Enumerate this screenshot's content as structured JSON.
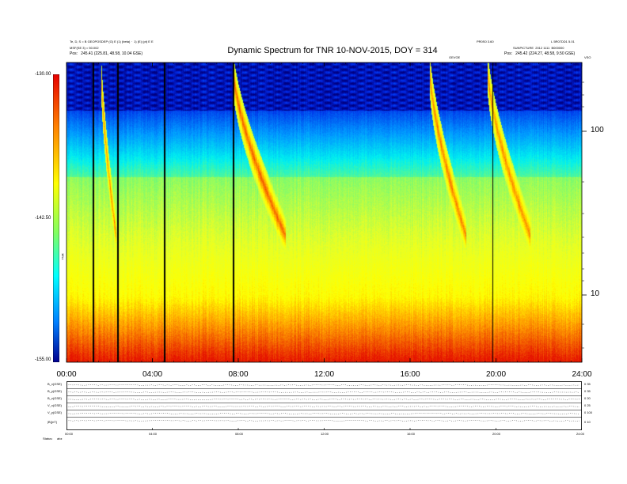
{
  "header": {
    "title": "Dynamic Spectrum for TNR 10-NOV-2015, DOY = 314",
    "left_line1": "Te, D, S = Β GEOPOSDEP (G) E (1) (beta) ·  1) (E) (pt) E E",
    "left_line2": "MSF(SE 3) = 50.002",
    "left_line3": "Pos:   245.41 (225.81, 48.58, 10.04 GSE)",
    "right_top_a": "PR0S0 3.60",
    "right_top_b": "L 5R07DD1 5.01",
    "right_line2": "SUNPICTURE  2012 1111  B000000",
    "right_line3": "Pos:   245.42 (224.27, 48.58, 9.50 GSE)",
    "marker_left": "GEVOE",
    "marker_right": "VSO"
  },
  "colorbar": {
    "top_label": "-130.00",
    "mid_label": "-142.50",
    "bottom_label": "-155.00",
    "axis_label": "TNR"
  },
  "chart_data": {
    "type": "heatmap",
    "title": "Dynamic Spectrum for TNR 10-NOV-2015, DOY = 314",
    "x_ticks": [
      "00:00",
      "04:00",
      "08:00",
      "12:00",
      "16:00",
      "20:00",
      "24:00"
    ],
    "x_range_hours": [
      0,
      24
    ],
    "y_scale": "log",
    "y_ticks_right": [
      "100",
      "10"
    ],
    "colorbar_range": [
      -155.0,
      -130.0
    ],
    "colorbar_ticks": [
      "-130.00",
      "-142.50",
      "-155.00"
    ],
    "dropouts_hours": [
      1.2,
      2.35,
      4.55,
      7.75,
      19.85
    ],
    "bursts": [
      {
        "start_h": 1.6,
        "end_h": 2.3,
        "peak": 0.85
      },
      {
        "start_h": 7.75,
        "end_h": 10.2,
        "peak": 1.0
      },
      {
        "start_h": 16.9,
        "end_h": 18.6,
        "peak": 0.9
      },
      {
        "start_h": 19.6,
        "end_h": 21.6,
        "peak": 0.85
      }
    ]
  },
  "panel": {
    "rows": [
      {
        "label": "B_x(GSE)",
        "right": "0 35"
      },
      {
        "label": "B_y(GSE)",
        "right": "0 35"
      },
      {
        "label": "B_z(GSE)",
        "right": "0 20"
      },
      {
        "label": "V_x(GSE)",
        "right": "0 25"
      },
      {
        "label": "V_y(GSE)",
        "right": "0 100"
      },
      {
        "label": "|B|(nT)",
        "right": "0 10"
      }
    ],
    "ticks": [
      "00:00",
      "04:00",
      "08:00",
      "12:00",
      "16:00",
      "20:00",
      "24:00"
    ],
    "status_label": "Status:",
    "status_value": "abz"
  }
}
